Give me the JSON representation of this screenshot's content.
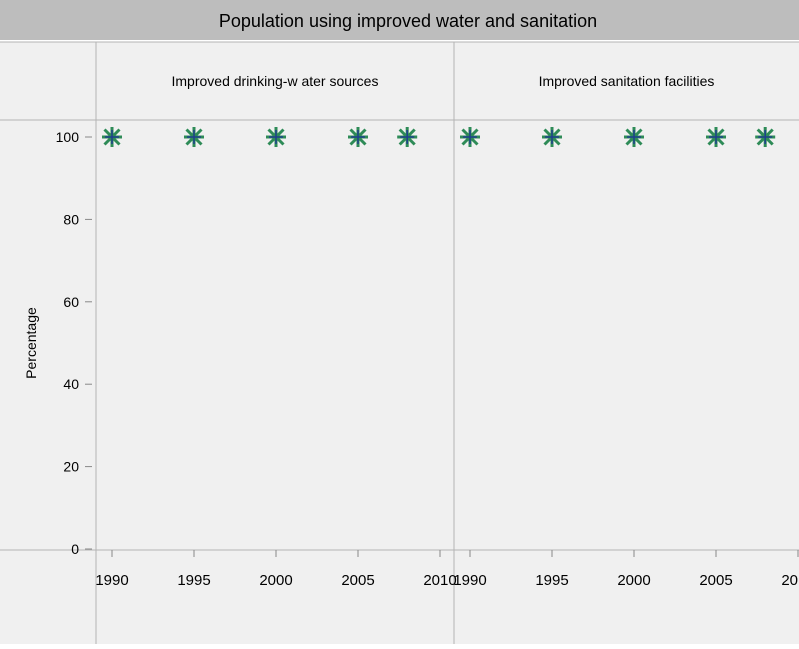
{
  "chart_data": {
    "type": "scatter",
    "title": "Population using improved water and sanitation",
    "ylabel": "Percentage",
    "xlabel": "",
    "ylim": [
      0,
      100
    ],
    "y_ticks": [
      0,
      20,
      40,
      60,
      80,
      100
    ],
    "x_ticks": [
      1990,
      1995,
      2000,
      2005,
      2010
    ],
    "marker": "asterisk",
    "marker_colors": {
      "outer": "#2e8b57",
      "inner": "#1f3f8f"
    },
    "colors": {
      "title_bar": "#bdbdbd",
      "panel_bg": "#f0f0f0",
      "grid_lines": "#b4b4b4"
    },
    "panels": [
      {
        "name": "Improved drinking-w ater sources",
        "x": [
          1990,
          1995,
          2000,
          2005,
          2008
        ],
        "y": [
          100,
          100,
          100,
          100,
          100
        ]
      },
      {
        "name": "Improved sanitation facilities",
        "x": [
          1990,
          1995,
          2000,
          2005,
          2008
        ],
        "y": [
          100,
          100,
          100,
          100,
          100
        ]
      }
    ]
  }
}
